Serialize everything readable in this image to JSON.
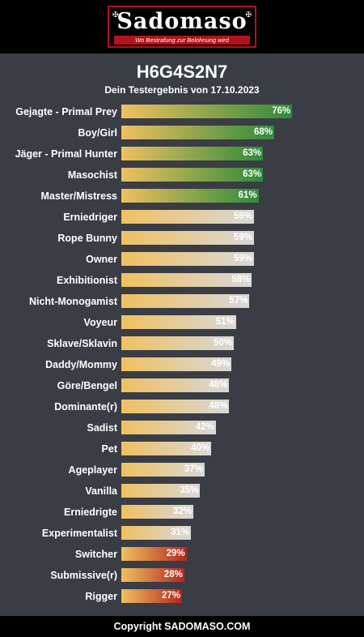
{
  "header": {
    "logo_text": "Sadomaso",
    "logo_tagline": "Wo Bestrafung zur Belohnung wird"
  },
  "colors": {
    "high": "#2e8b3a",
    "mid": "#d8d8d8",
    "low": "#b3261e",
    "start": "#f0c060"
  },
  "chart_data": {
    "type": "bar",
    "orientation": "horizontal",
    "title": "H6G4S2N7",
    "subtitle": "Dein Testergebnis von 17.10.2023",
    "xlim": [
      0,
      100
    ],
    "value_suffix": "%",
    "grid": false,
    "categories": [
      "Gejagte - Primal Prey",
      "Boy/Girl",
      "Jäger - Primal Hunter",
      "Masochist",
      "Master/Mistress",
      "Erniedriger",
      "Rope Bunny",
      "Owner",
      "Exhibitionist",
      "Nicht-Monogamist",
      "Voyeur",
      "Sklave/Sklavin",
      "Daddy/Mommy",
      "Göre/Bengel",
      "Dominante(r)",
      "Sadist",
      "Pet",
      "Ageplayer",
      "Vanilla",
      "Erniedrigte",
      "Experimentalist",
      "Switcher",
      "Submissive(r)",
      "Rigger"
    ],
    "values": [
      76,
      68,
      63,
      63,
      61,
      59,
      59,
      59,
      58,
      57,
      51,
      50,
      49,
      48,
      48,
      42,
      40,
      37,
      35,
      32,
      31,
      29,
      28,
      27
    ],
    "tiers": [
      "high",
      "high",
      "high",
      "high",
      "high",
      "mid",
      "mid",
      "mid",
      "mid",
      "mid",
      "mid",
      "mid",
      "mid",
      "mid",
      "mid",
      "mid",
      "mid",
      "mid",
      "mid",
      "mid",
      "mid",
      "low",
      "low",
      "low"
    ]
  },
  "footer": {
    "copyright": "Copyright SADOMASO.COM"
  }
}
